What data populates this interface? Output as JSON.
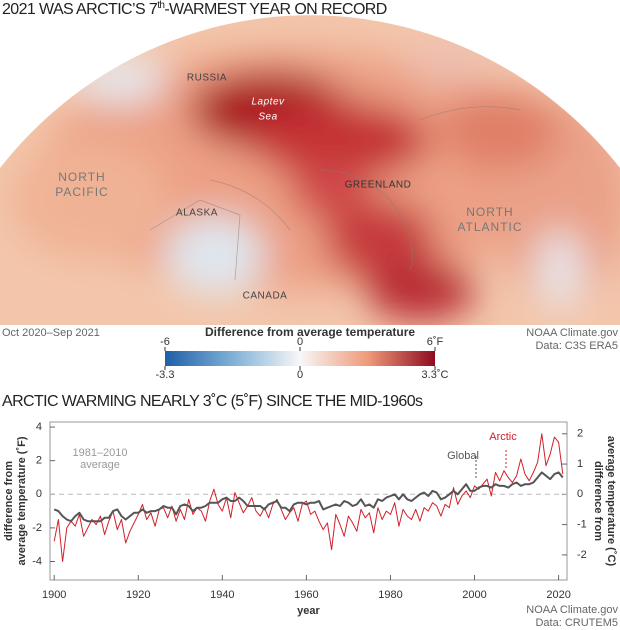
{
  "header": {
    "title": {
      "before": "2021 WAS ARCTIC’S 7",
      "sup": "th",
      "after": "-WARMEST YEAR ON RECORD"
    }
  },
  "map": {
    "labels": [
      [
        "RUSSIA"
      ],
      [
        "Laptev",
        "Sea"
      ],
      [
        "NORTH",
        "PACIFIC"
      ],
      [
        "GREENLAND"
      ],
      [
        "ALASKA"
      ],
      [
        "NORTH",
        "ATLANTIC"
      ],
      [
        "CANADA"
      ]
    ],
    "period": "Oct 2020–Sep 2021",
    "credits": [
      "NOAA Climate.gov",
      "Data: C3S ERA5"
    ],
    "colorbar": {
      "title": "Difference from average temperature",
      "fahrenheit": {
        "lim": [
          -6,
          6
        ],
        "ticks": [
          -6,
          0,
          {
            "value": 6,
            "label": "6˚F"
          }
        ]
      },
      "celsius": {
        "lim": [
          -3.3,
          3.3
        ],
        "ticks": [
          -3.3,
          0,
          {
            "value": 3.3,
            "label": "3.3˚C"
          }
        ]
      }
    }
  },
  "chart_data": {
    "type": "line",
    "title": "ARCTIC WARMING NEARLY 3˚C (5˚F) SINCE THE MID-1960s",
    "xlabel": "year",
    "ylabel": [
      "difference from",
      "average temperature (˚F)"
    ],
    "y2label": [
      "difference from",
      "average temperature (˚C)"
    ],
    "x": [
      1900,
      1901,
      1902,
      1903,
      1904,
      1905,
      1906,
      1907,
      1908,
      1909,
      1910,
      1911,
      1912,
      1913,
      1914,
      1915,
      1916,
      1917,
      1918,
      1919,
      1920,
      1921,
      1922,
      1923,
      1924,
      1925,
      1926,
      1927,
      1928,
      1929,
      1930,
      1931,
      1932,
      1933,
      1934,
      1935,
      1936,
      1937,
      1938,
      1939,
      1940,
      1941,
      1942,
      1943,
      1944,
      1945,
      1946,
      1947,
      1948,
      1949,
      1950,
      1951,
      1952,
      1953,
      1954,
      1955,
      1956,
      1957,
      1958,
      1959,
      1960,
      1961,
      1962,
      1963,
      1964,
      1965,
      1966,
      1967,
      1968,
      1969,
      1970,
      1971,
      1972,
      1973,
      1974,
      1975,
      1976,
      1977,
      1978,
      1979,
      1980,
      1981,
      1982,
      1983,
      1984,
      1985,
      1986,
      1987,
      1988,
      1989,
      1990,
      1991,
      1992,
      1993,
      1994,
      1995,
      1996,
      1997,
      1998,
      1999,
      2000,
      2001,
      2002,
      2003,
      2004,
      2005,
      2006,
      2007,
      2008,
      2009,
      2010,
      2011,
      2012,
      2013,
      2014,
      2015,
      2016,
      2017,
      2018,
      2019,
      2020,
      2021
    ],
    "series": [
      {
        "name": "Arctic",
        "color": "#d0202a",
        "values": [
          -2.8,
          -1.5,
          -4.0,
          -2.0,
          -1.6,
          -1.9,
          -1.2,
          -2.5,
          -2.0,
          -1.5,
          -1.8,
          -1.3,
          -2.4,
          -1.6,
          -1.0,
          -2.1,
          -1.5,
          -2.9,
          -2.2,
          -1.7,
          -1.2,
          -0.6,
          -1.5,
          -1.1,
          -1.9,
          -0.9,
          -0.8,
          -1.4,
          -0.7,
          -1.6,
          -0.9,
          -1.5,
          -0.3,
          -1.2,
          -0.8,
          -1.0,
          -1.6,
          -0.4,
          0.3,
          -0.6,
          -1.0,
          -0.2,
          -1.4,
          0.1,
          -0.5,
          -1.1,
          -0.7,
          -0.2,
          -1.0,
          -1.3,
          -0.8,
          -1.4,
          -0.6,
          -0.3,
          -0.9,
          -1.5,
          -1.1,
          -0.8,
          -1.6,
          -0.6,
          -0.4,
          -1.2,
          -1.0,
          -1.6,
          -2.1,
          -1.7,
          -3.3,
          -1.2,
          -1.8,
          -2.5,
          -1.3,
          -1.7,
          -2.2,
          -0.9,
          -1.4,
          -1.1,
          -2.3,
          -0.8,
          -1.5,
          -1.0,
          -1.2,
          -0.5,
          -1.9,
          -0.9,
          -1.3,
          -1.5,
          -0.9,
          -1.6,
          -0.8,
          -1.0,
          -0.5,
          -0.7,
          -1.3,
          -0.6,
          -0.8,
          0.4,
          -0.6,
          -0.1,
          0.2,
          -0.2,
          0.5,
          0.3,
          0.6,
          0.9,
          -0.1,
          1.3,
          0.8,
          1.4,
          1.0,
          0.7,
          1.1,
          2.1,
          1.2,
          0.8,
          1.3,
          1.9,
          3.6,
          1.7,
          2.4,
          3.4,
          3.1,
          1.2
        ]
      },
      {
        "name": "Global",
        "color": "#555555",
        "values": [
          -0.9,
          -1.0,
          -1.3,
          -1.5,
          -1.6,
          -1.3,
          -1.1,
          -1.5,
          -1.6,
          -1.6,
          -1.6,
          -1.6,
          -1.4,
          -1.4,
          -1.0,
          -0.9,
          -1.3,
          -1.5,
          -1.3,
          -1.1,
          -1.1,
          -0.9,
          -1.1,
          -1.0,
          -1.0,
          -0.9,
          -0.7,
          -0.8,
          -0.8,
          -1.2,
          -0.7,
          -0.6,
          -0.7,
          -1.0,
          -0.8,
          -0.8,
          -0.7,
          -0.5,
          -0.5,
          -0.5,
          -0.3,
          -0.2,
          -0.4,
          -0.4,
          -0.2,
          -0.4,
          -0.7,
          -0.7,
          -0.7,
          -0.7,
          -0.9,
          -0.6,
          -0.5,
          -0.4,
          -0.8,
          -0.8,
          -1.0,
          -0.6,
          -0.5,
          -0.5,
          -0.6,
          -0.5,
          -0.5,
          -0.4,
          -0.9,
          -0.8,
          -0.7,
          -0.6,
          -0.7,
          -0.4,
          -0.5,
          -0.7,
          -0.6,
          -0.3,
          -0.7,
          -0.6,
          -0.8,
          -0.3,
          -0.4,
          -0.2,
          -0.1,
          0.0,
          -0.3,
          0.0,
          -0.3,
          -0.4,
          -0.2,
          0.0,
          0.1,
          -0.1,
          0.2,
          0.1,
          -0.3,
          -0.2,
          0.0,
          0.2,
          0.0,
          0.3,
          0.6,
          0.2,
          0.2,
          0.4,
          0.5,
          0.5,
          0.4,
          0.6,
          0.5,
          0.5,
          0.4,
          0.6,
          0.7,
          0.5,
          0.6,
          0.6,
          0.7,
          1.0,
          1.3,
          1.1,
          0.9,
          1.2,
          1.3,
          1.0
        ]
      }
    ],
    "xlim": [
      1899,
      2022
    ],
    "xticks": [
      1900,
      1920,
      1940,
      1960,
      1980,
      2000,
      2020
    ],
    "ylim": [
      -5.1,
      4.3
    ],
    "yticks": [
      -4,
      -2,
      0,
      2,
      4
    ],
    "y2lim": [
      -2.83,
      2.39
    ],
    "y2ticks": [
      -2,
      -1,
      0,
      1,
      2
    ],
    "reference": {
      "value": 0,
      "label": [
        "1981–2010",
        "average"
      ]
    },
    "credits": [
      "NOAA Climate.gov",
      "Data: CRUTEM5"
    ]
  }
}
